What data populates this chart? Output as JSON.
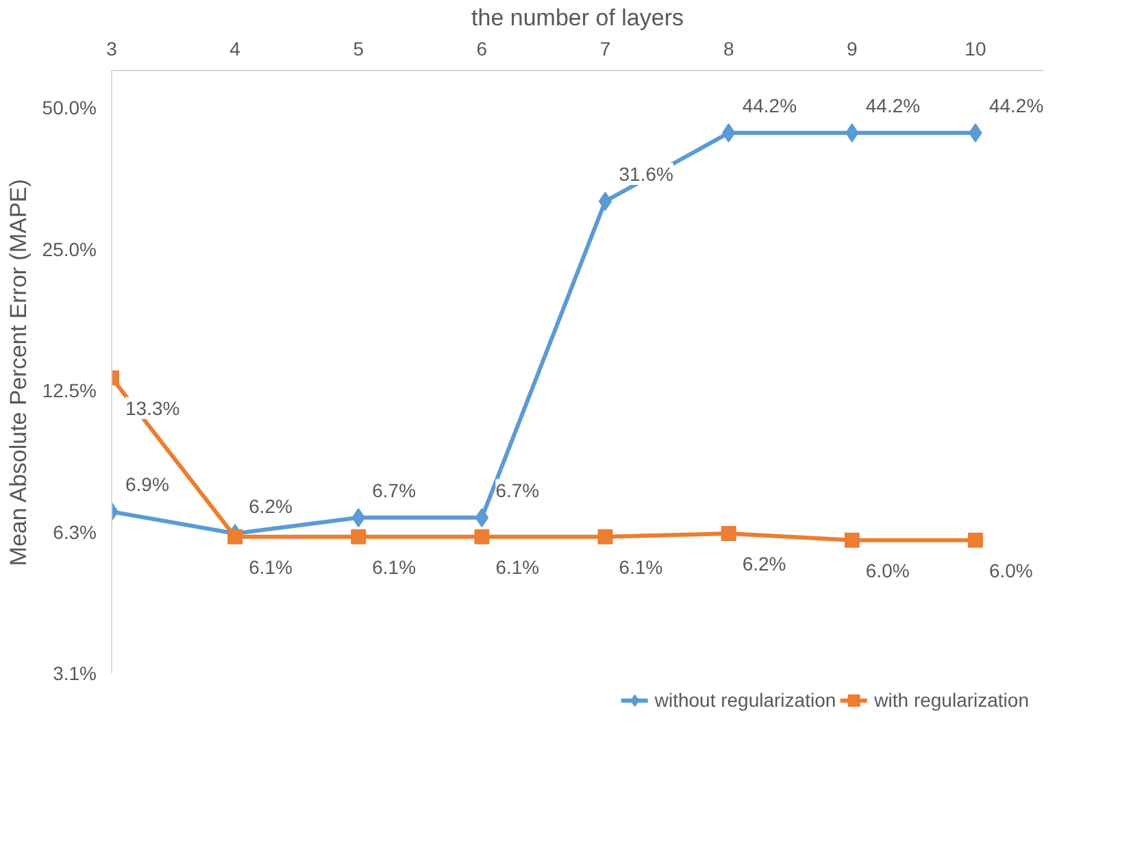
{
  "chart_data": {
    "type": "line",
    "xlabel": "the number of layers",
    "ylabel": "Mean Absolute Percent Error (MAPE)",
    "categories": [
      "3",
      "4",
      "5",
      "6",
      "7",
      "8",
      "9",
      "10"
    ],
    "series": [
      {
        "name": "without regularization",
        "color": "#5b9bd5",
        "marker": "diamond",
        "values": [
          6.9,
          6.2,
          6.7,
          6.7,
          31.6,
          44.2,
          44.2,
          44.2
        ],
        "value_labels": [
          "6.9%",
          "6.2%",
          "6.7%",
          "6.7%",
          "31.6%",
          "44.2%",
          "44.2%",
          "44.2%"
        ]
      },
      {
        "name": "with regularization",
        "color": "#ed7d31",
        "marker": "square",
        "values": [
          13.3,
          6.1,
          6.1,
          6.1,
          6.1,
          6.2,
          6.0,
          6.0
        ],
        "value_labels": [
          "13.3%",
          "6.1%",
          "6.1%",
          "6.1%",
          "6.1%",
          "6.2%",
          "6.0%",
          "6.0%"
        ]
      }
    ],
    "log": "y",
    "ylim": [
      3.125,
      60
    ],
    "yticks": [
      {
        "value": 3.125,
        "label": "3.1%"
      },
      {
        "value": 6.25,
        "label": "6.3%"
      },
      {
        "value": 12.5,
        "label": "12.5%"
      },
      {
        "value": 25,
        "label": "25.0%"
      },
      {
        "value": 50,
        "label": "50.0%"
      }
    ],
    "grid": false,
    "legend": "bottom",
    "line_style": "solid"
  }
}
